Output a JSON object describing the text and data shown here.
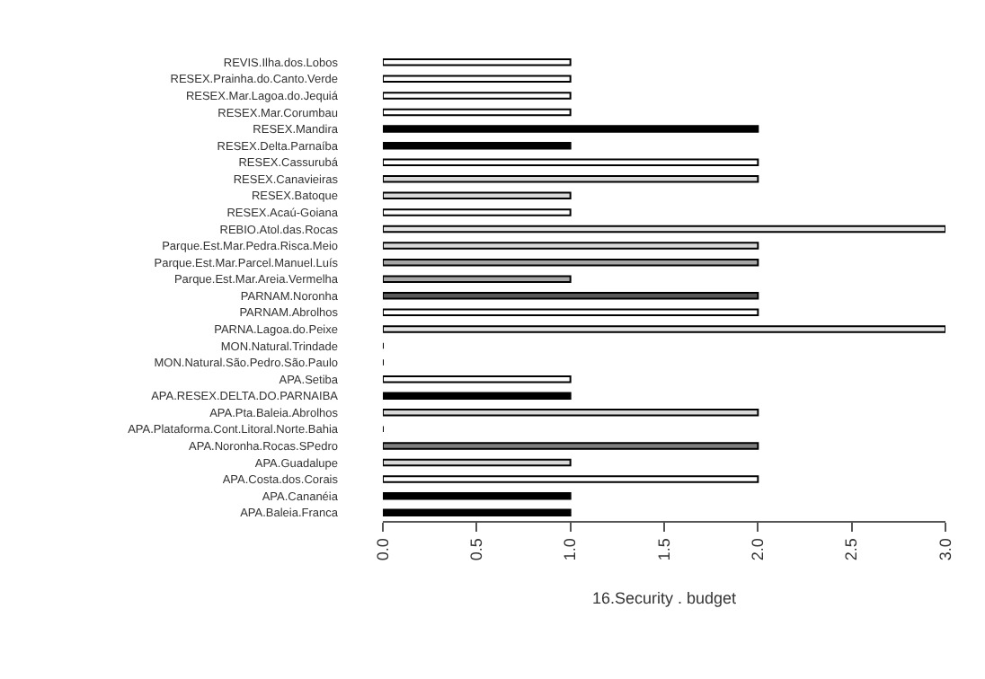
{
  "chart_data": {
    "type": "bar",
    "orientation": "horizontal",
    "xlabel": "16.Security . budget",
    "categories": [
      "REVIS.Ilha.dos.Lobos",
      "RESEX.Prainha.do.Canto.Verde",
      "RESEX.Mar.Lagoa.do.Jequiá",
      "RESEX.Mar.Corumbau",
      "RESEX.Mandira",
      "RESEX.Delta.Parnaíba",
      "RESEX.Cassurubá",
      "RESEX.Canavieiras",
      "RESEX.Batoque",
      "RESEX.Acaú-Goiana",
      "REBIO.Atol.das.Rocas",
      "Parque.Est.Mar.Pedra.Risca.Meio",
      "Parque.Est.Mar.Parcel.Manuel.Luís",
      "Parque.Est.Mar.Areia.Vermelha",
      "PARNAM.Noronha",
      "PARNAM.Abrolhos",
      "PARNA.Lagoa.do.Peixe",
      "MON.Natural.Trindade",
      "MON.Natural.São.Pedro.São.Paulo",
      "APA.Setiba",
      "APA.RESEX.DELTA.DO.PARNAIBA",
      "APA.Pta.Baleia.Abrolhos",
      "APA.Plataforma.Cont.Litoral.Norte.Bahia",
      "APA.Noronha.Rocas.SPedro",
      "APA.Guadalupe",
      "APA.Costa.dos.Corais",
      "APA.Cananéia",
      "APA.Baleia.Franca"
    ],
    "values": [
      1,
      1,
      1,
      1,
      2,
      1,
      2,
      2,
      1,
      1,
      3,
      2,
      2,
      1,
      2,
      2,
      3,
      0,
      0,
      1,
      1,
      2,
      0,
      2,
      1,
      2,
      1,
      1
    ],
    "colors": [
      "#ffffff",
      "#ffffff",
      "#ffffff",
      "#ffffff",
      "#000000",
      "#000000",
      "#ffffff",
      "#d9d9d9",
      "#d9d9d9",
      "#ffffff",
      "#e6e6e6",
      "#d9d9d9",
      "#a6a6a6",
      "#a6a6a6",
      "#595959",
      "#ffffff",
      "#e6e6e6",
      "#000000",
      "#000000",
      "#ffffff",
      "#000000",
      "#d9d9d9",
      "#000000",
      "#808080",
      "#d9d9d9",
      "#ffffff",
      "#000000",
      "#000000"
    ],
    "xlim": [
      0,
      3
    ],
    "xticks": [
      {
        "value": 0,
        "label": "0.0"
      },
      {
        "value": 0.5,
        "label": "0.5"
      },
      {
        "value": 1,
        "label": "1.0"
      },
      {
        "value": 1.5,
        "label": "1.5"
      },
      {
        "value": 2,
        "label": "2.0"
      },
      {
        "value": 2.5,
        "label": "2.5"
      },
      {
        "value": 3,
        "label": "3.0"
      }
    ],
    "legend": false
  }
}
